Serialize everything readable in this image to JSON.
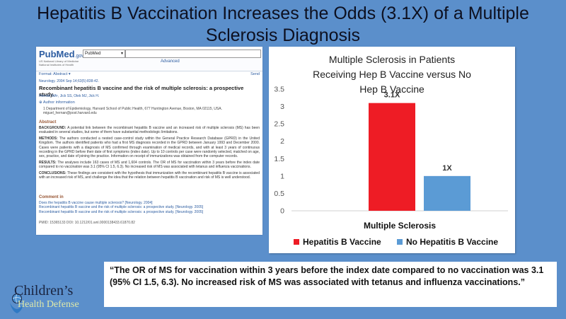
{
  "title": "Hepatitis B Vaccination Increases the Odds (3.1X) of a Multiple Sclerosis Diagnosis",
  "pubmed": {
    "logo": "PubMed",
    "logo_suffix": ".gov",
    "logo_sub": "US National Library of Medicine National Institutes of Health",
    "db_select": "PubMed",
    "advanced": "Advanced",
    "format": "Format: Abstract ▾",
    "send": "Send",
    "journal": "Neurology. 2004 Sep 14;63(5):838-42.",
    "article_title": "Recombinant hepatitis B vaccine and the risk of multiple sclerosis: a prospective study.",
    "authors": "Hernán MA¹, Jick SS, Olek MJ, Jick H.",
    "author_info": "⊕ Author information",
    "affiliation": "1 Department of Epidemiology, Harvard School of Public Health, 677 Huntington Avenue, Boston, MA 02115, USA. miguel_hernan@post.harvard.edu",
    "abstract_heading": "Abstract",
    "abstract": {
      "background_label": "BACKGROUND:",
      "background": "A potential link between the recombinant hepatitis B vaccine and an increased risk of multiple sclerosis (MS) has been evaluated in several studies, but some of them have substantial methodologic limitations.",
      "methods_label": "METHODS:",
      "methods": "The authors conducted a nested case-control study within the General Practice Research Database (GPRD) in the United Kingdom. The authors identified patients who had a first MS diagnosis recorded in the GPRD between January 1993 and December 2000. Cases were patients with a diagnosis of MS confirmed through examination of medical records, and with at least 3 years of continuous recording in the GPRD before their date of first symptoms (index date). Up to 10 controls per case were randomly selected, matched on age, sex, practice, and date of joining the practice. Information on receipt of immunizations was obtained from the computer records.",
      "results_label": "RESULTS:",
      "results": "The analyses include 163 cases of MS and 1,604 controls. The OR of MS for vaccination within 3 years before the index date compared to no vaccination was 3.1 (95% CI 1.5, 6.3). No increased risk of MS was associated with tetanus and influenza vaccinations.",
      "conclusions_label": "CONCLUSIONS:",
      "conclusions": "These findings are consistent with the hypothesis that immunization with the recombinant hepatitis B vaccine is associated with an increased risk of MS, and challenge the idea that the relation between hepatitis B vaccination and risk of MS is well understood."
    },
    "comment_heading": "Comment in",
    "comments": [
      "Does the hepatitis B vaccine cause multiple sclerosis? [Neurology. 2004]",
      "Recombinant hepatitis B vaccine and the risk of multiple sclerosis: a prospective study. [Neurology. 2005]",
      "Recombinant hepatitis B vaccine and the risk of multiple sclerosis: a prospective study. [Neurology. 2005]"
    ],
    "pmid": "PMID: 15365133   DOI: 10.1212/01.wnl.0000138433.61870.82"
  },
  "chart_data": {
    "type": "bar",
    "title": "Multiple Sclerosis in Patients Receiving Hep B Vaccine versus No Hep B Vaccine",
    "categories": [
      "Multiple Sclerosis"
    ],
    "series": [
      {
        "name": "Hepatitis B Vaccine",
        "values": [
          3.1
        ],
        "label": "3.1X",
        "color": "#ee1c25"
      },
      {
        "name": "No Hepatitis B Vaccine",
        "values": [
          1
        ],
        "label": "1X",
        "color": "#5b9bd5"
      }
    ],
    "ylim": [
      0,
      3.5
    ],
    "yticks": [
      "0",
      "0.5",
      "1",
      "1.5",
      "2",
      "2.5",
      "3",
      "3.5"
    ],
    "grid": false,
    "legend": "bottom"
  },
  "quote": "“The OR of MS for vaccination within 3 years before the index date compared to no vaccination was 3.1 (95% CI 1.5, 6.3). No increased risk of MS was associated with tetanus and influenza vaccinations.”",
  "logo": {
    "line1": "Children’s",
    "line2": "Health Defense"
  }
}
